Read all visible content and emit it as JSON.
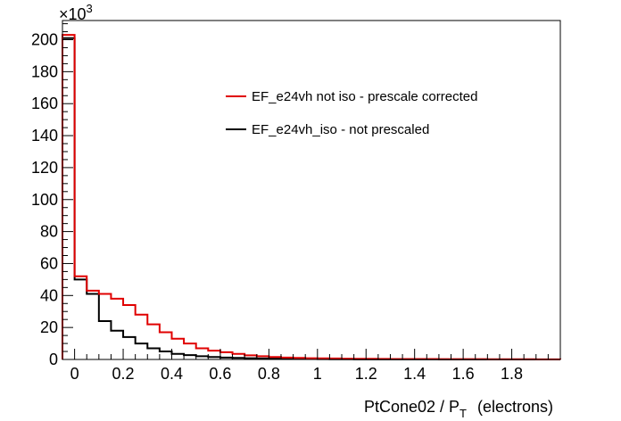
{
  "chart_data": {
    "type": "histogram",
    "title": "",
    "xlabel": "PtCone02 / P",
    "xlabel_subscript": "T",
    "xlabel_suffix": "(electrons)",
    "ylabel": "",
    "y_exponent_label": "×10",
    "y_exponent_power": "3",
    "xlim": [
      -0.05,
      2.0
    ],
    "ylim": [
      0,
      212
    ],
    "x_ticks": [
      0,
      0.2,
      0.4,
      0.6,
      0.8,
      1,
      1.2,
      1.4,
      1.6,
      1.8
    ],
    "x_tick_labels": [
      "0",
      "0.2",
      "0.4",
      "0.6",
      "0.8",
      "1",
      "1.2",
      "1.4",
      "1.6",
      "1.8"
    ],
    "y_ticks": [
      0,
      20,
      40,
      60,
      80,
      100,
      120,
      140,
      160,
      180,
      200
    ],
    "y_tick_labels": [
      "0",
      "20",
      "40",
      "60",
      "80",
      "100",
      "120",
      "140",
      "160",
      "180",
      "200"
    ],
    "grid": false,
    "legend_position": "top-right",
    "bin_edges": [
      -0.05,
      0.0,
      0.05,
      0.1,
      0.15,
      0.2,
      0.25,
      0.3,
      0.35,
      0.4,
      0.45,
      0.5,
      0.55,
      0.6,
      0.65,
      0.7,
      0.75,
      0.8,
      0.85,
      0.9,
      0.95,
      1.0,
      1.05,
      1.1,
      1.15,
      1.2,
      1.25,
      1.3,
      1.35,
      1.4,
      1.45,
      1.5,
      1.55,
      1.6,
      1.65,
      1.7,
      1.75,
      1.8,
      1.85,
      1.9,
      1.95,
      2.0
    ],
    "series": [
      {
        "name": "EF_e24vh not iso - prescale corrected",
        "color": "#e00000",
        "values": [
          203,
          52,
          43,
          41,
          38,
          34,
          28,
          22,
          17,
          13,
          10,
          7,
          5.5,
          4.5,
          3.5,
          2.6,
          2,
          1.5,
          1.2,
          1,
          0.8,
          0.7,
          0.6,
          0.5,
          0.45,
          0.4,
          0.35,
          0.3,
          0.3,
          0.28,
          0.25,
          0.22,
          0.2,
          0.2,
          0.18,
          0.16,
          0.15,
          0.14,
          0.12,
          0.1,
          0.1
        ]
      },
      {
        "name": "EF_e24vh_iso - not prescaled",
        "color": "#000000",
        "values": [
          201,
          50,
          41,
          24,
          18,
          14,
          10,
          7,
          5,
          3.5,
          2.7,
          2,
          1.5,
          1.2,
          1,
          0.8,
          0.6,
          0.5,
          0.4,
          0.3,
          0.25,
          0.2,
          0.15,
          0.12,
          0.1,
          0.08,
          0.07,
          0.06,
          0.05,
          0.05,
          0.04,
          0.03,
          0.03,
          0.02,
          0.02,
          0.02,
          0.02,
          0.01,
          0.01,
          0.01,
          0.01
        ]
      }
    ]
  }
}
